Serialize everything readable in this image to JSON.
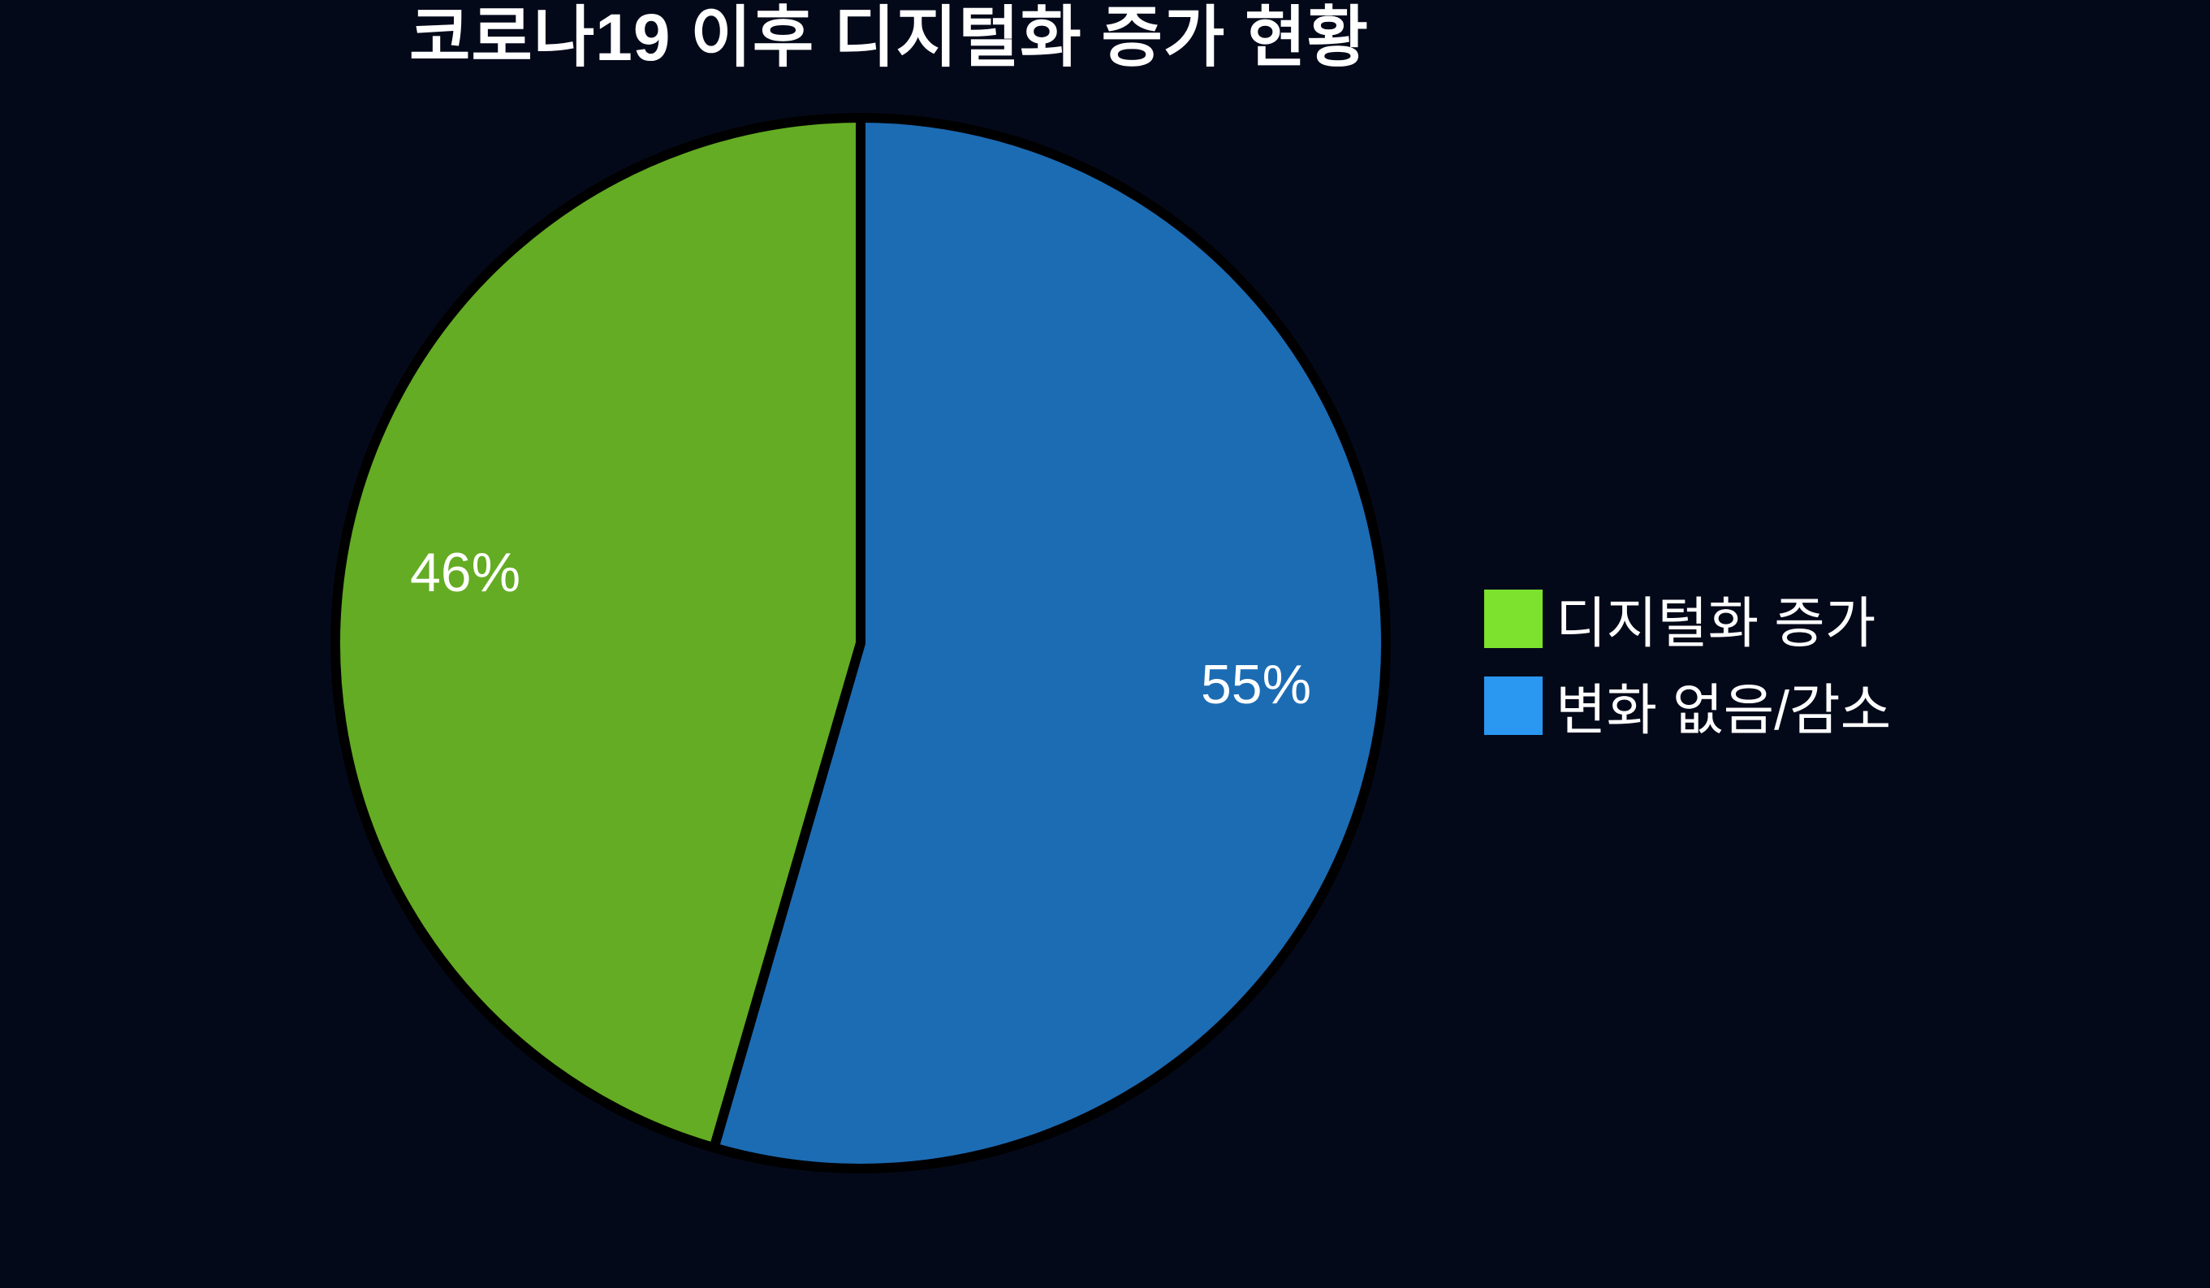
{
  "page": {
    "background": "#04091A",
    "text_color": "#FFFFFF"
  },
  "chart_data": {
    "type": "pie",
    "title": "코로나19 이후 디지털화 증가 현황",
    "slices": [
      {
        "label": "디지털화 증가",
        "pct_label": "46%",
        "value": 46,
        "sweep_fraction": 0.455,
        "color": "#64AC23",
        "legend_color": "#7CE22D"
      },
      {
        "label": "변화 없음/감소",
        "pct_label": "55%",
        "value": 55,
        "sweep_fraction": 0.545,
        "color": "#1C6CB4",
        "legend_color": "#2A97F0"
      }
    ],
    "start_angle_deg": 90,
    "direction": "counterclockwise",
    "slice_outline": "#000000",
    "label_color": "#FFFFFF",
    "legend_position": "right",
    "background": "#04091A"
  }
}
